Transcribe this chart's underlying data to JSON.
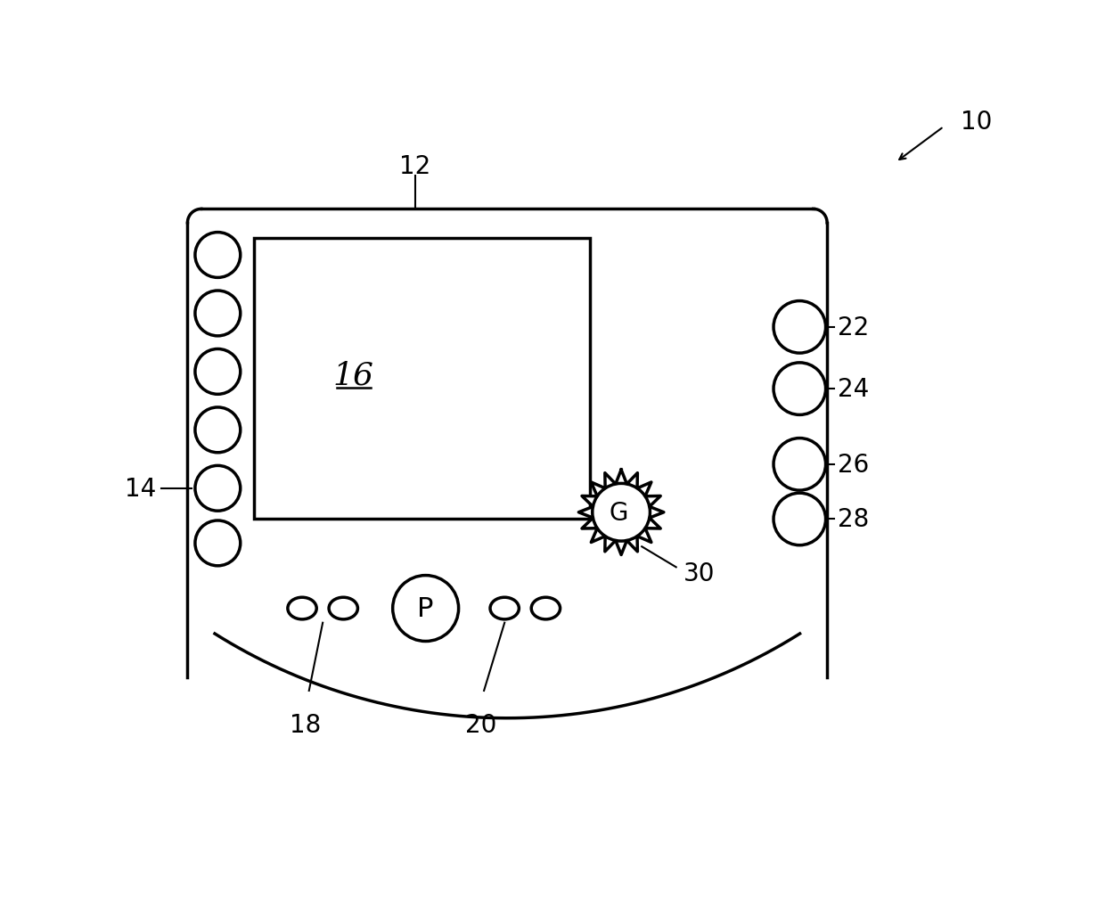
{
  "bg_color": "#ffffff",
  "line_color": "#000000",
  "panel_color": "#ffffff",
  "screen_color": "#ffffff",
  "label_10": "10",
  "label_12": "12",
  "label_14": "14",
  "label_16": "16",
  "label_18": "18",
  "label_20": "20",
  "label_22": "22",
  "label_24": "24",
  "label_26": "26",
  "label_28": "28",
  "label_30": "30",
  "label_G": "G",
  "label_P": "P",
  "lw_main": 2.5,
  "lw_thin": 1.5
}
